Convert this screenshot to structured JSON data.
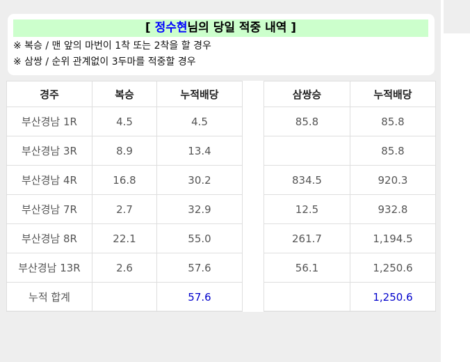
{
  "header": {
    "title_prefix": "[ ",
    "title_name": "정수현",
    "title_suffix": "님의 당일 적중 내역 ]",
    "note1": "※ 복승 / 맨 앞의 마번이 1착 또는 2착을 할 경우",
    "note2": "※ 삼쌍 / 순위 관계없이 3두마를 적중할 경우"
  },
  "table": {
    "columns": {
      "race": "경주",
      "boksung": "복승",
      "bok_cum": "누적배당",
      "samssang": "삼쌍승",
      "sam_cum": "누적배당"
    },
    "rows": [
      {
        "race": "부산경남 1R",
        "boksung": "4.5",
        "bok_cum": "4.5",
        "samssang": "85.8",
        "sam_cum": "85.8"
      },
      {
        "race": "부산경남 3R",
        "boksung": "8.9",
        "bok_cum": "13.4",
        "samssang": "",
        "sam_cum": "85.8"
      },
      {
        "race": "부산경남 4R",
        "boksung": "16.8",
        "bok_cum": "30.2",
        "samssang": "834.5",
        "sam_cum": "920.3"
      },
      {
        "race": "부산경남 7R",
        "boksung": "2.7",
        "bok_cum": "32.9",
        "samssang": "12.5",
        "sam_cum": "932.8"
      },
      {
        "race": "부산경남 8R",
        "boksung": "22.1",
        "bok_cum": "55.0",
        "samssang": "261.7",
        "sam_cum": "1,194.5"
      },
      {
        "race": "부산경남 13R",
        "boksung": "2.6",
        "bok_cum": "57.6",
        "samssang": "56.1",
        "sam_cum": "1,250.6"
      }
    ],
    "total": {
      "label": "누적 합계",
      "bok_cum": "57.6",
      "sam_cum": "1,250.6"
    }
  },
  "colors": {
    "title_bg": "#ccffcc",
    "name": "#0000ff",
    "total_values": "#0000cc"
  }
}
